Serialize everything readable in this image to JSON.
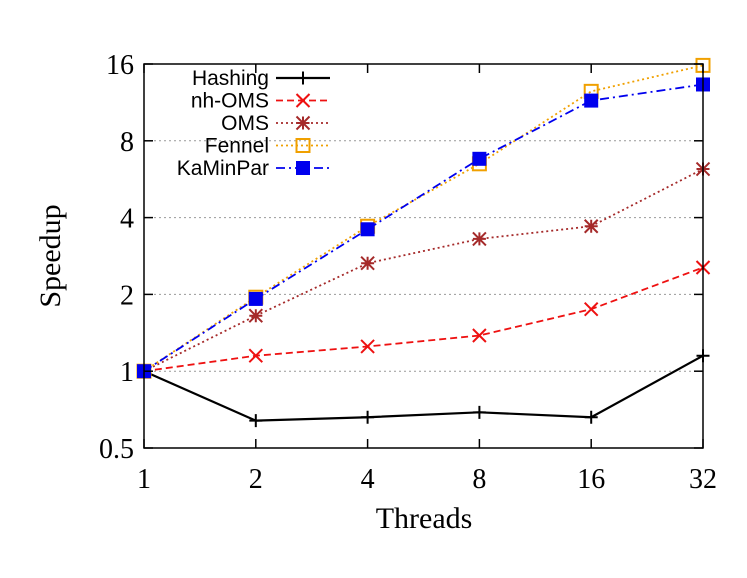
{
  "chart_data": {
    "type": "line",
    "xlabel": "Threads",
    "ylabel": "Speedup",
    "x_scale": "log2",
    "y_scale": "log2",
    "x_ticks": [
      1,
      2,
      4,
      8,
      16,
      32
    ],
    "x_tick_labels": [
      "1",
      "2",
      "4",
      "8",
      "16",
      "32"
    ],
    "y_ticks": [
      0.5,
      1,
      2,
      4,
      8,
      16
    ],
    "y_tick_labels": [
      "0.5",
      "1",
      "2",
      "4",
      "8",
      "16"
    ],
    "xlim": [
      1,
      32
    ],
    "ylim": [
      0.5,
      16
    ],
    "grid": "horizontal dotted",
    "legend_position": "top-left",
    "x": [
      1,
      2,
      4,
      8,
      16,
      32
    ],
    "series": [
      {
        "name": "Hashing",
        "color": "#000000",
        "dash": "solid",
        "marker": "plus",
        "values": [
          1.0,
          0.64,
          0.66,
          0.69,
          0.66,
          1.15
        ]
      },
      {
        "name": "nh-OMS",
        "color": "#ee1111",
        "dash": "dashed",
        "marker": "x",
        "values": [
          1.0,
          1.15,
          1.25,
          1.38,
          1.75,
          2.55
        ]
      },
      {
        "name": "OMS",
        "color": "#a52a2a",
        "dash": "dotted",
        "marker": "asterisk",
        "values": [
          1.0,
          1.65,
          2.65,
          3.3,
          3.7,
          6.2
        ]
      },
      {
        "name": "Fennel",
        "color": "#f0a000",
        "dash": "dotted",
        "marker": "square-open",
        "values": [
          1.0,
          1.95,
          3.7,
          6.5,
          12.5,
          15.8
        ]
      },
      {
        "name": "KaMinPar",
        "color": "#0000ee",
        "dash": "dashdot",
        "marker": "square-filled",
        "values": [
          1.0,
          1.92,
          3.6,
          6.8,
          11.5,
          13.3
        ]
      }
    ]
  }
}
